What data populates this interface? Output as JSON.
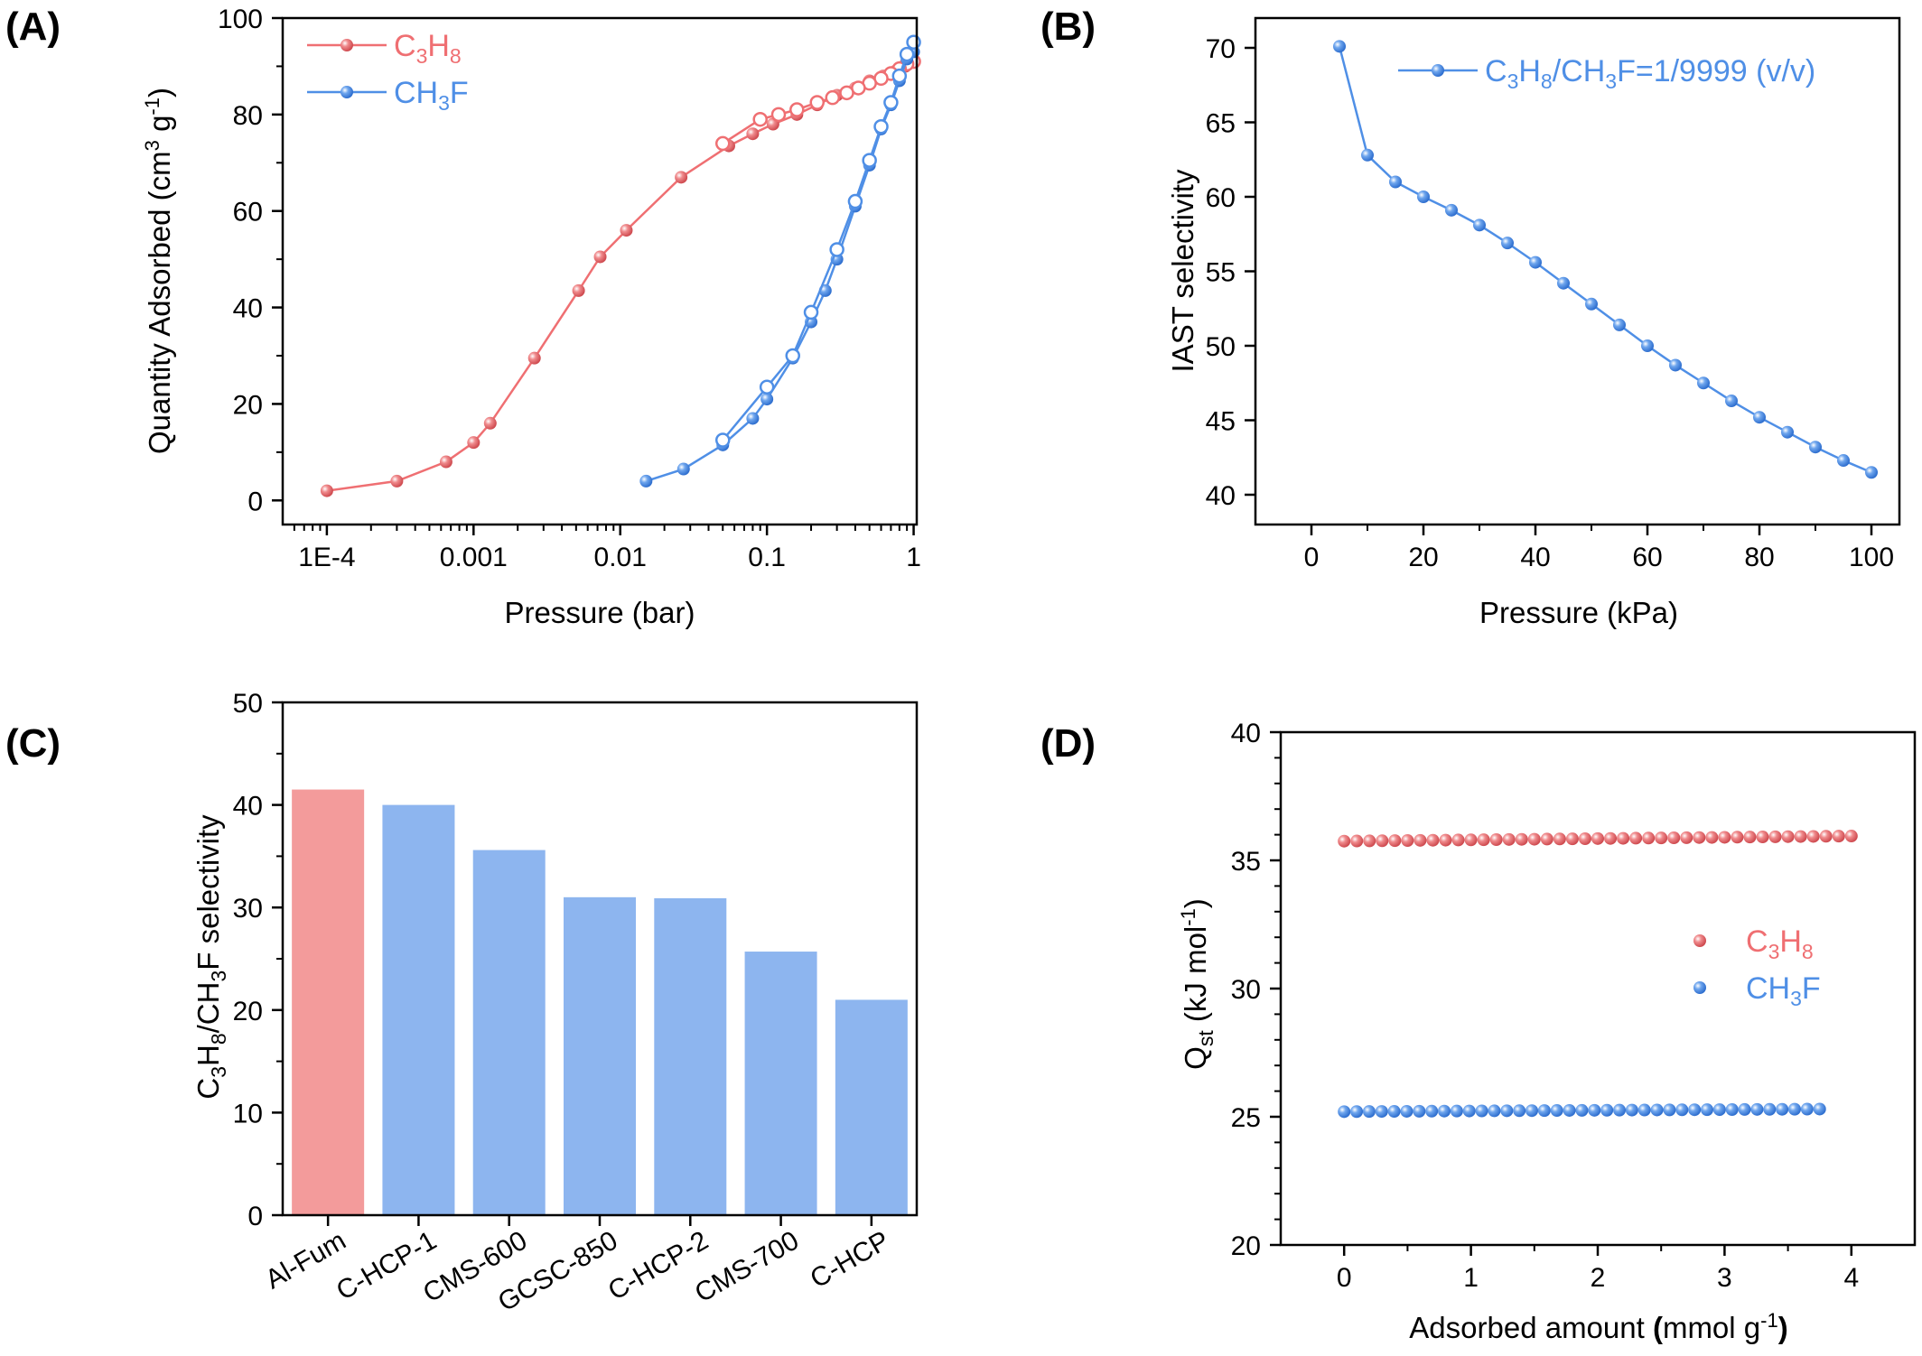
{
  "colors": {
    "red": "#ef6f72",
    "blue": "#4f8fe6",
    "bar_red": "#f39b9b",
    "bar_blue": "#8db5ef"
  },
  "chart_data": [
    {
      "panel": "(A)",
      "type": "line",
      "xscale": "log",
      "xlim": [
        5e-05,
        1.05
      ],
      "ylim": [
        -5,
        100
      ],
      "xticks": [
        0.0001,
        0.001,
        0.01,
        0.1,
        1
      ],
      "xtick_labels": [
        "1E-4",
        "0.001",
        "0.01",
        "0.1",
        "1"
      ],
      "yticks": [
        0,
        20,
        40,
        60,
        80,
        100
      ],
      "xlabel": "Pressure (bar)",
      "ylabel": "Quantity Adsorbed (cm³ g⁻¹)",
      "legend_position": "top-left",
      "series": [
        {
          "name": "C3H8",
          "color": "red",
          "role": "adsorption",
          "x": [
            0.0001,
            0.0003,
            0.00065,
            0.001,
            0.0013,
            0.0026,
            0.0052,
            0.0073,
            0.011,
            0.026,
            0.055,
            0.08,
            0.11,
            0.16,
            0.22,
            0.3,
            0.4,
            0.5,
            0.62,
            0.75,
            0.88,
            1.0
          ],
          "y": [
            2,
            4,
            8,
            12,
            16,
            29.5,
            43.5,
            50.5,
            56,
            67,
            73.5,
            76,
            78,
            80,
            82,
            84,
            85.5,
            87,
            88,
            89,
            90,
            91
          ]
        },
        {
          "name": "C3H8",
          "color": "red",
          "role": "desorption",
          "x": [
            1.0,
            0.9,
            0.8,
            0.7,
            0.6,
            0.5,
            0.42,
            0.35,
            0.28,
            0.22,
            0.16,
            0.12,
            0.09,
            0.05
          ],
          "y": [
            91,
            90.5,
            89.5,
            88.5,
            87.5,
            86.5,
            85.5,
            84.5,
            83.5,
            82.5,
            81,
            80,
            79,
            74
          ]
        },
        {
          "name": "CH3F",
          "color": "blue",
          "role": "adsorption",
          "x": [
            0.015,
            0.027,
            0.05,
            0.08,
            0.1,
            0.15,
            0.2,
            0.25,
            0.3,
            0.4,
            0.5,
            0.6,
            0.7,
            0.8,
            0.9,
            1.0
          ],
          "y": [
            4,
            6.5,
            11.5,
            17,
            21,
            29.5,
            37,
            43.5,
            50,
            61,
            69.5,
            77,
            82,
            87,
            91.5,
            93
          ]
        },
        {
          "name": "CH3F",
          "color": "blue",
          "role": "desorption",
          "x": [
            1.0,
            0.9,
            0.8,
            0.7,
            0.6,
            0.5,
            0.4,
            0.3,
            0.2,
            0.15,
            0.1,
            0.05
          ],
          "y": [
            95,
            92.5,
            88,
            82.5,
            77.5,
            70.5,
            62,
            52,
            39,
            30,
            23.5,
            12.5
          ]
        }
      ]
    },
    {
      "panel": "(B)",
      "type": "line",
      "xlim": [
        -10,
        105
      ],
      "ylim": [
        38,
        72
      ],
      "xticks": [
        0,
        20,
        40,
        60,
        80,
        100
      ],
      "yticks": [
        40,
        45,
        50,
        55,
        60,
        65,
        70
      ],
      "xlabel": "Pressure (kPa)",
      "ylabel": "IAST selectivity",
      "legend_position": "top-right",
      "series": [
        {
          "name": "C3H8/CH3F=1/9999 (v/v)",
          "color": "blue",
          "x": [
            5,
            10,
            15,
            20,
            25,
            30,
            35,
            40,
            45,
            50,
            55,
            60,
            65,
            70,
            75,
            80,
            85,
            90,
            95,
            100
          ],
          "y": [
            70.1,
            62.8,
            61,
            60,
            59.1,
            58.1,
            56.9,
            55.6,
            54.2,
            52.8,
            51.4,
            50,
            48.7,
            47.5,
            46.3,
            45.2,
            44.2,
            43.2,
            42.3,
            41.5
          ]
        }
      ]
    },
    {
      "panel": "(C)",
      "type": "bar",
      "ylim": [
        0,
        50
      ],
      "yticks": [
        0,
        10,
        20,
        30,
        40,
        50
      ],
      "xlabel": "",
      "ylabel": "C3H8/CH3F selectivity",
      "categories": [
        "Al-Fum",
        "C-HCP-1",
        "CMS-600",
        "GCSC-850",
        "C-HCP-2",
        "CMS-700",
        "C-HCP"
      ],
      "values": [
        41.5,
        40,
        35.6,
        31,
        30.9,
        25.7,
        21
      ],
      "bar_colors": [
        "bar_red",
        "bar_blue",
        "bar_blue",
        "bar_blue",
        "bar_blue",
        "bar_blue",
        "bar_blue"
      ]
    },
    {
      "panel": "(D)",
      "type": "scatter",
      "xlim": [
        -0.5,
        4.5
      ],
      "ylim": [
        20,
        40
      ],
      "xticks": [
        0,
        1,
        2,
        3,
        4
      ],
      "yticks": [
        20,
        25,
        30,
        35,
        40
      ],
      "xlabel": "Adsorbed amount (mmol g⁻¹)",
      "ylabel": "Qst (kJ mol⁻¹)",
      "legend_position": "right",
      "series": [
        {
          "name": "C3H8",
          "color": "red",
          "x_start": 0,
          "x_end": 4,
          "count": 41,
          "y_start": 35.75,
          "y_end": 35.95
        },
        {
          "name": "CH3F",
          "color": "blue",
          "x_start": 0,
          "x_end": 3.75,
          "count": 39,
          "y_start": 25.2,
          "y_end": 25.3
        }
      ]
    }
  ]
}
